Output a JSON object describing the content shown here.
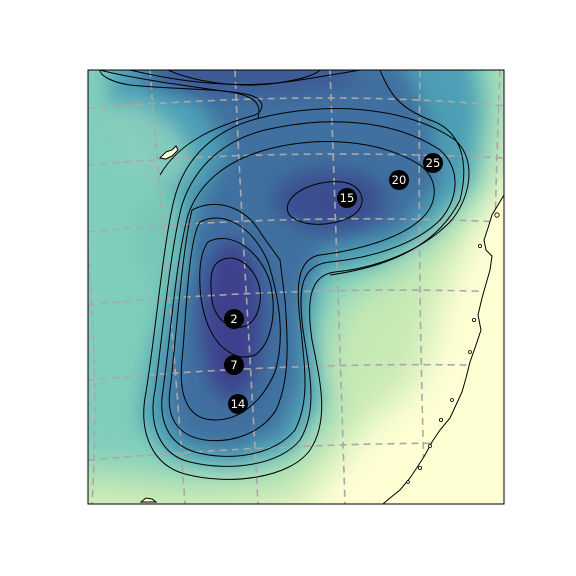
{
  "map": {
    "colors": {
      "land": "#ffffd4",
      "shallow": "#c7e9b4",
      "mid": "#7fcdbb",
      "deep": "#41b6c4",
      "deeper": "#3a7fa8",
      "deepest": "#3f3f8f",
      "contour": "#000000",
      "grid": "#a0a0a0",
      "coast": "#000000",
      "marker": "#000000",
      "marker_text": "#ffffff"
    },
    "contour_labels": [
      {
        "text": "2"
      },
      {
        "text": "7"
      },
      {
        "text": "14"
      },
      {
        "text": "15"
      },
      {
        "text": "20"
      },
      {
        "text": "25"
      }
    ]
  }
}
